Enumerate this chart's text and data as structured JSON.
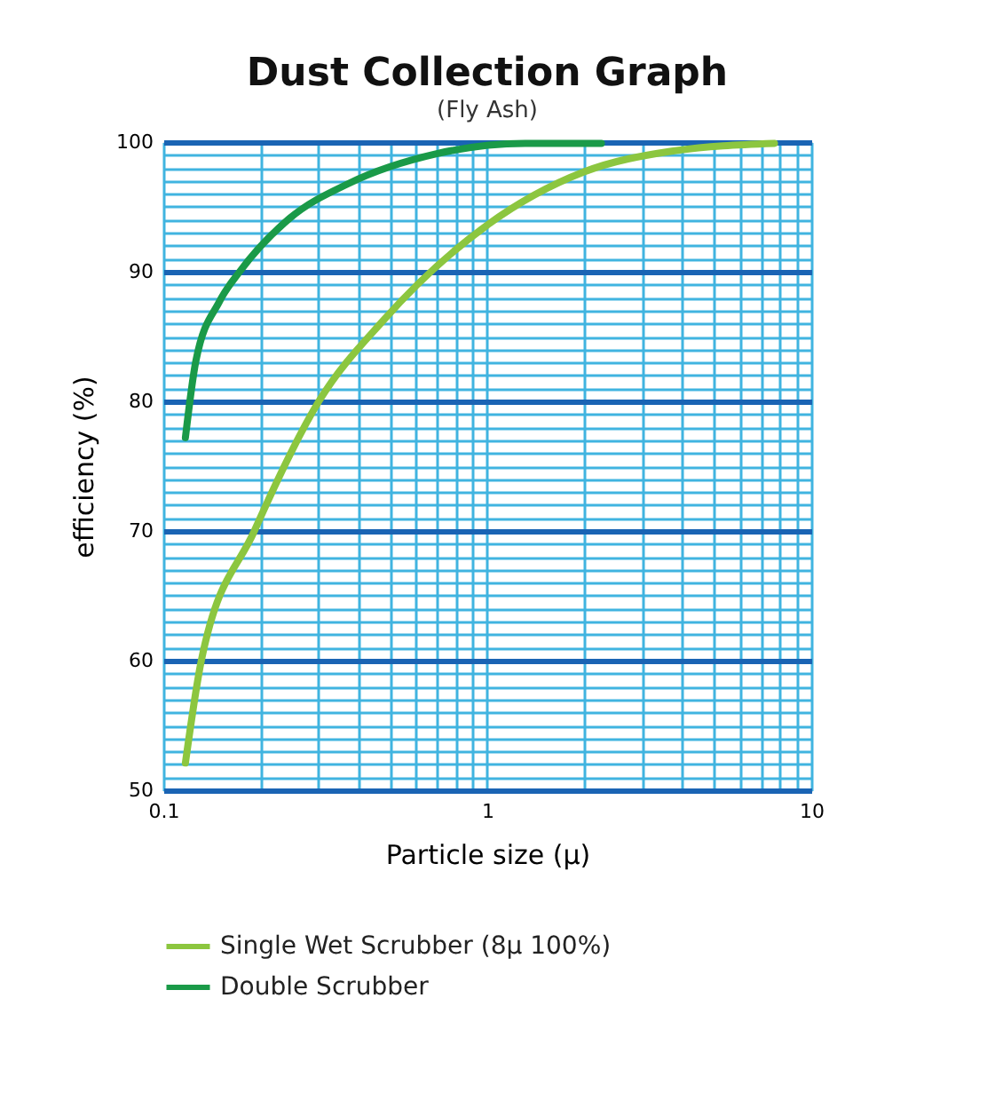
{
  "chart_data": {
    "type": "line",
    "title": "Dust Collection Graph",
    "subtitle": "(Fly Ash)",
    "xlabel": "Particle size (μ)",
    "ylabel": "efficiency (%)",
    "log": "x",
    "xlim": [
      0.1,
      10
    ],
    "ylim": [
      50,
      100
    ],
    "xticks": [
      0.1,
      {
        "value": 0.2,
        "label": null
      },
      {
        "value": 0.3,
        "label": null
      },
      {
        "value": 0.4,
        "label": null
      },
      {
        "value": 0.5,
        "label": null
      },
      {
        "value": 0.6,
        "label": null
      },
      {
        "value": 0.7,
        "label": null
      },
      {
        "value": 0.8,
        "label": null
      },
      {
        "value": 0.9,
        "label": null
      },
      1,
      {
        "value": 2,
        "label": null
      },
      {
        "value": 3,
        "label": null
      },
      {
        "value": 4,
        "label": null
      },
      {
        "value": 5,
        "label": null
      },
      {
        "value": 6,
        "label": null
      },
      {
        "value": 7,
        "label": null
      },
      {
        "value": 8,
        "label": null
      },
      {
        "value": 9,
        "label": null
      },
      10
    ],
    "yticks": [
      50,
      {
        "value": 51,
        "label": null
      },
      {
        "value": 52,
        "label": null
      },
      {
        "value": 53,
        "label": null
      },
      {
        "value": 54,
        "label": null
      },
      {
        "value": 55,
        "label": null
      },
      {
        "value": 56,
        "label": null
      },
      {
        "value": 57,
        "label": null
      },
      {
        "value": 58,
        "label": null
      },
      {
        "value": 59,
        "label": null
      },
      60,
      {
        "value": 61,
        "label": null
      },
      {
        "value": 62,
        "label": null
      },
      {
        "value": 63,
        "label": null
      },
      {
        "value": 64,
        "label": null
      },
      {
        "value": 65,
        "label": null
      },
      {
        "value": 66,
        "label": null
      },
      {
        "value": 67,
        "label": null
      },
      {
        "value": 68,
        "label": null
      },
      {
        "value": 69,
        "label": null
      },
      70,
      {
        "value": 71,
        "label": null
      },
      {
        "value": 72,
        "label": null
      },
      {
        "value": 73,
        "label": null
      },
      {
        "value": 74,
        "label": null
      },
      {
        "value": 75,
        "label": null
      },
      {
        "value": 76,
        "label": null
      },
      {
        "value": 77,
        "label": null
      },
      {
        "value": 78,
        "label": null
      },
      {
        "value": 79,
        "label": null
      },
      80,
      {
        "value": 81,
        "label": null
      },
      {
        "value": 82,
        "label": null
      },
      {
        "value": 83,
        "label": null
      },
      {
        "value": 84,
        "label": null
      },
      {
        "value": 85,
        "label": null
      },
      {
        "value": 86,
        "label": null
      },
      {
        "value": 87,
        "label": null
      },
      {
        "value": 88,
        "label": null
      },
      {
        "value": 89,
        "label": null
      },
      90,
      {
        "value": 91,
        "label": null
      },
      {
        "value": 92,
        "label": null
      },
      {
        "value": 93,
        "label": null
      },
      {
        "value": 94,
        "label": null
      },
      {
        "value": 95,
        "label": null
      },
      {
        "value": 96,
        "label": null
      },
      {
        "value": 97,
        "label": null
      },
      {
        "value": 98,
        "label": null
      },
      {
        "value": 99,
        "label": null
      },
      100
    ],
    "grid": true,
    "legend": "bottom left",
    "marker": "none",
    "line_style": "solid",
    "series": [
      {
        "name": "Single Wet Scrubber (8μ 100%)",
        "color": "#8cc63f",
        "x": [
          0.117,
          0.131,
          0.191,
          0.302,
          0.48,
          1.0,
          1.99,
          3.71,
          7.7
        ],
        "values": [
          52.1,
          60.0,
          70.0,
          80.0,
          86.3,
          93.6,
          97.7,
          99.3,
          99.9
        ]
      },
      {
        "name": "Double Scrubber",
        "color": "#1a9a48",
        "x": [
          0.117,
          0.126,
          0.149,
          0.172,
          0.245,
          0.373,
          0.698,
          1.31,
          2.25
        ],
        "values": [
          77.2,
          83.1,
          87.7,
          90.0,
          94.1,
          96.8,
          99.1,
          99.9,
          99.9
        ]
      }
    ]
  }
}
